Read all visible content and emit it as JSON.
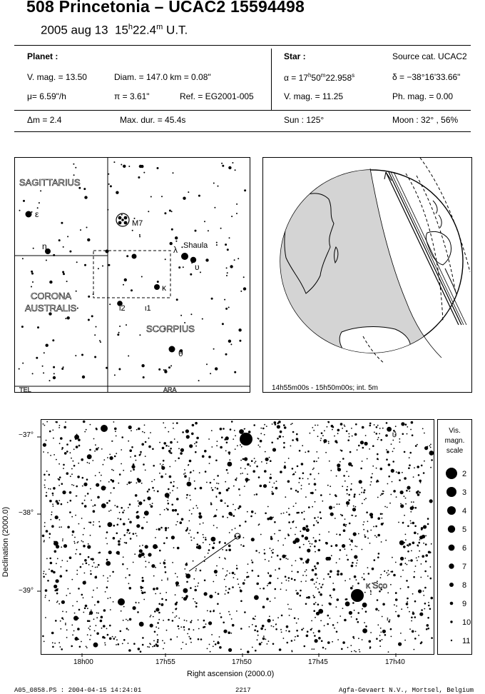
{
  "header": {
    "title": "508 Princetonia  –  UCAC2 15594498",
    "date": "2005 aug 13",
    "time_h": "15",
    "time_h_unit": "h",
    "time_m": "22.4",
    "time_m_unit": "m",
    "time_suffix": "U.T."
  },
  "planet": {
    "heading": "Planet :",
    "vmag": "V. mag. = 13.50",
    "diam": "Diam. = 147.0 km = 0.08\"",
    "mu": "μ=  6.59\"/h",
    "pi": "π =  3.61\"",
    "ref": "Ref. = EG2001-005",
    "dm": "Δm = 2.4",
    "maxdur": "Max. dur. = 45.4s"
  },
  "star": {
    "heading": "Star :",
    "source": "Source cat.  UCAC2",
    "alpha_prefix": "α = 17",
    "alpha_h": "h",
    "alpha_mid": "50",
    "alpha_m": "m",
    "alpha_s": "22.958",
    "alpha_sup": "s",
    "delta": "δ = −38°16'33.66\"",
    "vmag": "V. mag. = 11.25",
    "phmag": "Ph. mag. =  0.00",
    "sun": "Sun : 125°",
    "moon": "Moon :  32° , 56%"
  },
  "finder_chart": {
    "labels": {
      "sagittarius": "SAGITTARIUS",
      "corona1": "CORONA",
      "corona2": "AUSTRALIS",
      "scorpius": "SCORPIUS",
      "m7": "M7",
      "shaula": "Shaula",
      "tel": "TEL",
      "ara": "ARA",
      "epsilon": "ε",
      "eta": "η",
      "lambda": "λ",
      "upsilon": "υ",
      "kappa": "κ",
      "iota2": "ι2",
      "iota1": "ι1",
      "theta": "θ"
    }
  },
  "globe": {
    "caption": "14h55m00s - 15h50m00s; int.  5m"
  },
  "star_chart": {
    "x_axis_label": "Right ascension (2000.0)",
    "y_axis_label": "Declination (2000.0)",
    "x_ticks": [
      "18h00",
      "17h55",
      "17h50",
      "17h45",
      "17h40"
    ],
    "y_ticks": [
      "−37°",
      "−38°",
      "−39°"
    ],
    "kappa_sco": "κ Sco",
    "upsilon_mark": "υ",
    "scale_title": [
      "Vis.",
      "magn.",
      "scale"
    ],
    "scale_mags": [
      "2",
      "3",
      "4",
      "5",
      "6",
      "7",
      "8",
      "9",
      "10",
      "11"
    ]
  },
  "footer": {
    "file": "A05_0858.PS : 2004-04-15 14:24:01",
    "page": "2217",
    "credit": "Agfa-Gevaert N.V., Mortsel, Belgium"
  }
}
